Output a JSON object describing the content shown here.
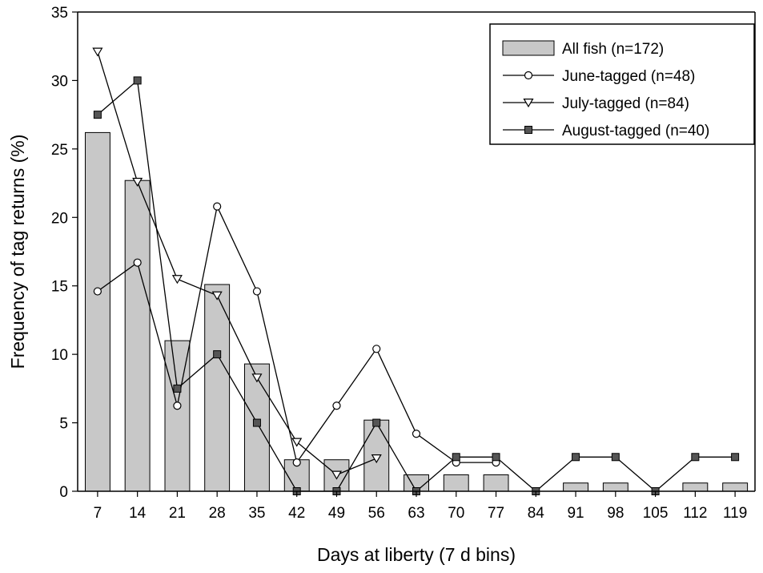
{
  "colors": {
    "bar_fill": "#c8c8c8",
    "line": "#000000",
    "august_marker_fill": "#555555",
    "june_marker_fill": "#ffffff",
    "july_marker_fill": "#ffffff"
  },
  "chart_data": {
    "type": "bar",
    "xlabel": "Days at liberty (7 d bins)",
    "ylabel": "Frequency of tag returns (%)",
    "ylim": [
      0,
      35
    ],
    "yticks": [
      0,
      5,
      10,
      15,
      20,
      25,
      30,
      35
    ],
    "grid": false,
    "legend_position": "top-right",
    "categories": [
      "7",
      "14",
      "21",
      "28",
      "35",
      "42",
      "49",
      "56",
      "63",
      "70",
      "77",
      "84",
      "91",
      "98",
      "105",
      "112",
      "119"
    ],
    "series": [
      {
        "name": "All fish (n=172)",
        "kind": "bar",
        "marker": "bar",
        "values": [
          26.2,
          22.7,
          11.0,
          15.1,
          9.3,
          2.3,
          2.3,
          5.2,
          1.2,
          1.2,
          1.2,
          0,
          0.6,
          0.6,
          0,
          0.6,
          0.6
        ]
      },
      {
        "name": "June-tagged (n=48)",
        "kind": "line",
        "marker": "circle",
        "values": [
          14.6,
          16.7,
          6.25,
          20.8,
          14.6,
          2.1,
          6.25,
          10.4,
          4.2,
          2.1,
          2.1,
          null,
          null,
          null,
          null,
          null,
          null
        ]
      },
      {
        "name": "July-tagged (n=84)",
        "kind": "line",
        "marker": "triangle-down",
        "values": [
          32.1,
          22.6,
          15.5,
          14.3,
          8.3,
          3.6,
          1.2,
          2.4,
          null,
          null,
          null,
          null,
          null,
          null,
          null,
          null,
          null
        ]
      },
      {
        "name": "August-tagged (n=40)",
        "kind": "line",
        "marker": "square",
        "values": [
          27.5,
          30.0,
          7.5,
          10.0,
          5.0,
          0,
          0,
          5.0,
          0,
          2.5,
          2.5,
          0,
          2.5,
          2.5,
          0,
          2.5,
          2.5
        ]
      }
    ]
  }
}
